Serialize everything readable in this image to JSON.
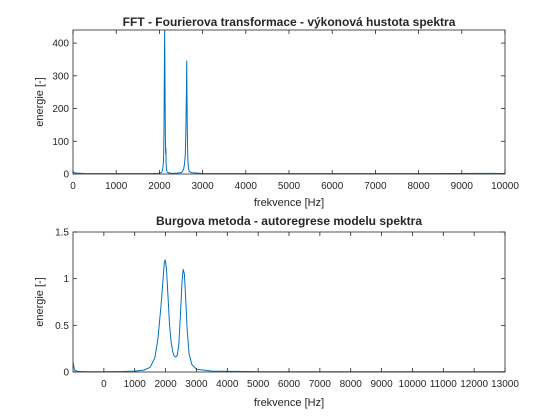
{
  "chart_data": [
    {
      "type": "line",
      "title": "FFT - Fourierova transformace - výkonová hustota spektra",
      "xlabel": "frekvence [Hz]",
      "ylabel": "energie [-]",
      "xlim": [
        0,
        10000
      ],
      "ylim": [
        0,
        440
      ],
      "xticks": [
        0,
        1000,
        2000,
        3000,
        4000,
        5000,
        6000,
        7000,
        8000,
        9000,
        10000
      ],
      "yticks": [
        0,
        100,
        200,
        300,
        400
      ],
      "xticklabels": [
        "0",
        "1000",
        "2000",
        "3000",
        "4000",
        "5000",
        "6000",
        "7000",
        "8000",
        "9000",
        "10000"
      ],
      "yticklabels": [
        "0",
        "100",
        "200",
        "300",
        "400"
      ],
      "grid": false,
      "line_color": "#0072BD",
      "series": [
        {
          "points": [
            [
              0,
              6
            ],
            [
              60,
              3
            ],
            [
              300,
              1
            ],
            [
              1000,
              1
            ],
            [
              1800,
              1
            ],
            [
              1960,
              2
            ],
            [
              2000,
              3
            ],
            [
              2040,
              4
            ],
            [
              2060,
              7
            ],
            [
              2080,
              18
            ],
            [
              2095,
              40
            ],
            [
              2105,
              120
            ],
            [
              2112,
              260
            ],
            [
              2118,
              380
            ],
            [
              2122,
              440
            ],
            [
              2126,
              360
            ],
            [
              2132,
              230
            ],
            [
              2138,
              120
            ],
            [
              2144,
              62
            ],
            [
              2150,
              80
            ],
            [
              2156,
              30
            ],
            [
              2165,
              12
            ],
            [
              2180,
              6
            ],
            [
              2220,
              3
            ],
            [
              2300,
              2
            ],
            [
              2450,
              3
            ],
            [
              2520,
              5
            ],
            [
              2560,
              14
            ],
            [
              2580,
              30
            ],
            [
              2600,
              60
            ],
            [
              2612,
              130
            ],
            [
              2620,
              200
            ],
            [
              2626,
              250
            ],
            [
              2632,
              345
            ],
            [
              2638,
              240
            ],
            [
              2645,
              150
            ],
            [
              2652,
              80
            ],
            [
              2660,
              40
            ],
            [
              2672,
              18
            ],
            [
              2690,
              8
            ],
            [
              2750,
              4
            ],
            [
              2850,
              3
            ],
            [
              2950,
              2
            ],
            [
              3050,
              1
            ],
            [
              3500,
              1
            ],
            [
              5000,
              1
            ],
            [
              8000,
              1
            ],
            [
              9750,
              2
            ],
            [
              10000,
              1
            ]
          ]
        }
      ]
    },
    {
      "type": "line",
      "title": "Burgova metoda - autoregrese modelu spektra",
      "xlabel": "frekvence [Hz]",
      "ylabel": "energie [-]",
      "xlim": [
        -1000,
        13000
      ],
      "ylim": [
        0,
        1.5
      ],
      "xticks": [
        0,
        1000,
        2000,
        3000,
        4000,
        5000,
        6000,
        7000,
        8000,
        9000,
        10000,
        11000,
        12000,
        13000
      ],
      "yticks": [
        0,
        0.5,
        1,
        1.5
      ],
      "xticklabels": [
        "0",
        "1000",
        "2000",
        "3000",
        "4000",
        "5000",
        "6000",
        "7000",
        "8000",
        "9000",
        "10000",
        "11000",
        "12000",
        "13000"
      ],
      "yticklabels": [
        "0",
        "0.5",
        "1",
        "1.5"
      ],
      "grid": false,
      "line_color": "#0072BD",
      "series": [
        {
          "points": [
            [
              -1000,
              0.1
            ],
            [
              -950,
              0.02
            ],
            [
              -850,
              0.005
            ],
            [
              -500,
              0.003
            ],
            [
              0,
              0.003
            ],
            [
              600,
              0.005
            ],
            [
              1000,
              0.01
            ],
            [
              1300,
              0.02
            ],
            [
              1500,
              0.05
            ],
            [
              1650,
              0.15
            ],
            [
              1750,
              0.35
            ],
            [
              1850,
              0.7
            ],
            [
              1920,
              1.0
            ],
            [
              1960,
              1.18
            ],
            [
              1990,
              1.2
            ],
            [
              2030,
              1.1
            ],
            [
              2080,
              0.8
            ],
            [
              2130,
              0.5
            ],
            [
              2180,
              0.32
            ],
            [
              2230,
              0.22
            ],
            [
              2280,
              0.17
            ],
            [
              2330,
              0.16
            ],
            [
              2380,
              0.18
            ],
            [
              2430,
              0.3
            ],
            [
              2480,
              0.6
            ],
            [
              2530,
              0.95
            ],
            [
              2570,
              1.1
            ],
            [
              2610,
              1.05
            ],
            [
              2650,
              0.8
            ],
            [
              2700,
              0.45
            ],
            [
              2760,
              0.2
            ],
            [
              2850,
              0.08
            ],
            [
              3000,
              0.03
            ],
            [
              3500,
              0.01
            ],
            [
              5000,
              0.003
            ],
            [
              8000,
              0.002
            ],
            [
              12900,
              0.002
            ],
            [
              13000,
              0.002
            ]
          ]
        }
      ]
    }
  ]
}
